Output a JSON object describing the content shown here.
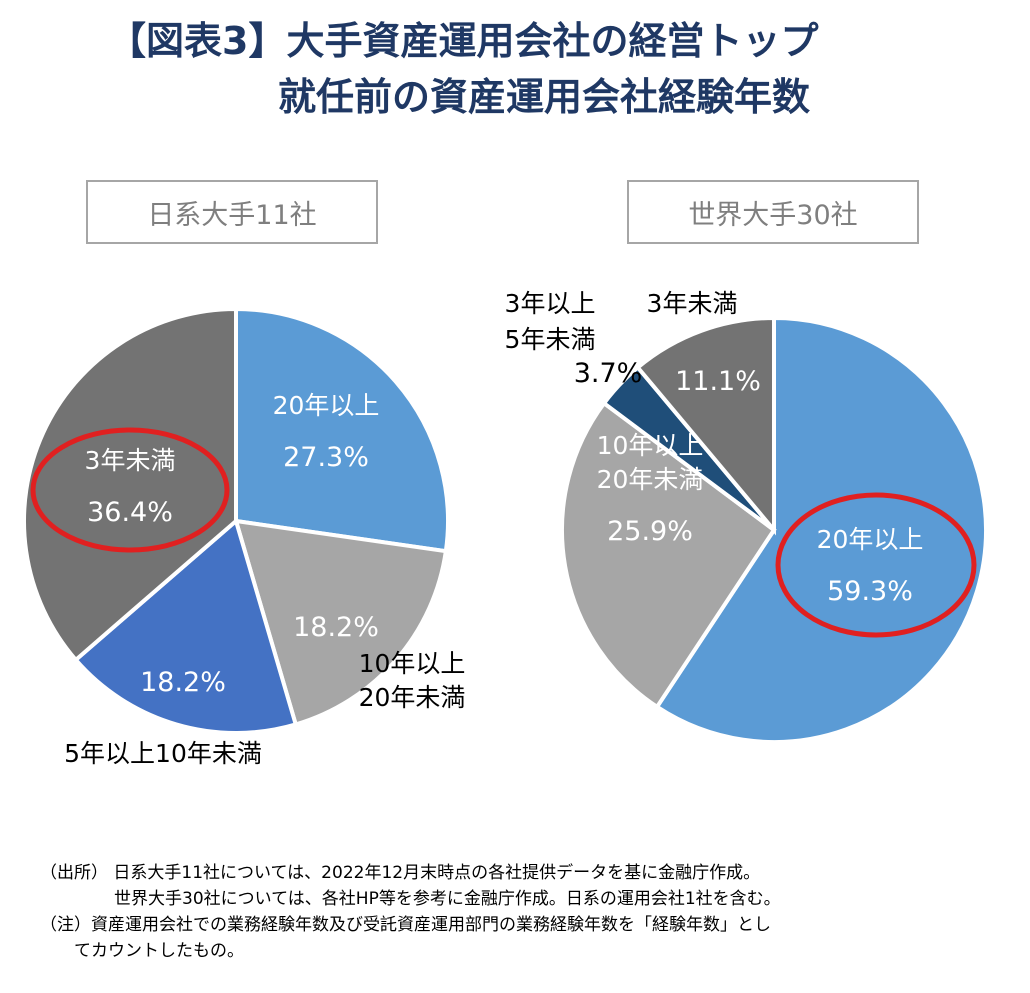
{
  "title": {
    "line1": "【図表3】大手資産運用会社の経営トップ",
    "line2": "就任前の資産運用会社経験年数"
  },
  "chart_data": [
    {
      "type": "pie",
      "title": "日系大手11社",
      "slices": [
        {
          "label": "20年以上",
          "value": 27.3,
          "display": "27.3%",
          "color": "#5b9bd5"
        },
        {
          "label": "10年以上\n20年未満",
          "value": 18.2,
          "display": "18.2%",
          "color": "#a6a6a6"
        },
        {
          "label": "5年以上10年未満",
          "value": 18.2,
          "display": "18.2%",
          "color": "#4472c4"
        },
        {
          "label": "3年未満",
          "value": 36.4,
          "display": "36.4%",
          "color": "#737373"
        }
      ],
      "highlight": "3年未満"
    },
    {
      "type": "pie",
      "title": "世界大手30社",
      "slices": [
        {
          "label": "20年以上",
          "value": 59.3,
          "display": "59.3%",
          "color": "#5b9bd5"
        },
        {
          "label": "10年以上\n20年未満",
          "value": 25.9,
          "display": "25.9%",
          "color": "#a6a6a6"
        },
        {
          "label": "3年以上\n5年未満",
          "value": 3.7,
          "display": "3.7%",
          "color": "#1f4e79"
        },
        {
          "label": "3年未満",
          "value": 11.1,
          "display": "11.1%",
          "color": "#737373"
        }
      ],
      "highlight": "20年以上"
    }
  ],
  "notes": {
    "source_line1": "（出所） 日系大手11社については、2022年12月末時点の各社提供データを基に金融庁作成。",
    "source_line2": "世界大手30社については、各社HP等を参考に金融庁作成。日系の運用会社1社を含む。",
    "note_line1": "（注）資産運用会社での業務経験年数及び受託資産運用部門の業務経験年数を「経験年数」とし",
    "note_line2": "てカウントしたもの。"
  },
  "colors": {
    "title": "#1f3864",
    "highlight_ring": "#e02020"
  }
}
